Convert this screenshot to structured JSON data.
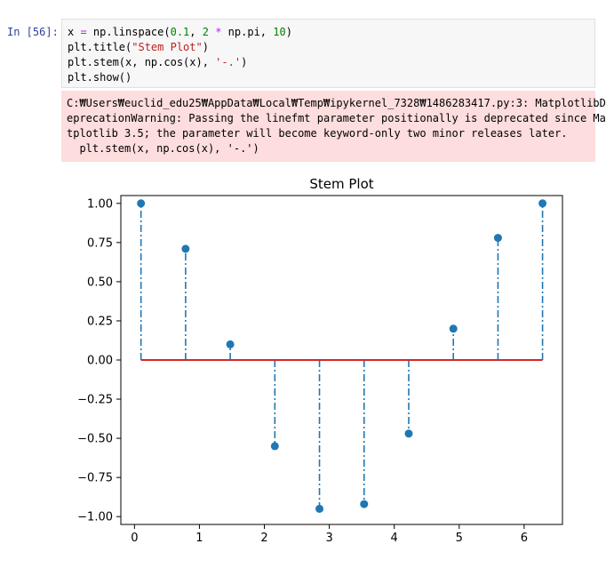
{
  "cell": {
    "prompt": "In [56]:",
    "code_lines": [
      [
        {
          "t": "x ",
          "c": ""
        },
        {
          "t": "=",
          "c": "op"
        },
        {
          "t": " np.linspace(",
          "c": ""
        },
        {
          "t": "0.1",
          "c": "num"
        },
        {
          "t": ", ",
          "c": ""
        },
        {
          "t": "2",
          "c": "num"
        },
        {
          "t": " ",
          "c": ""
        },
        {
          "t": "*",
          "c": "op"
        },
        {
          "t": " np.pi, ",
          "c": ""
        },
        {
          "t": "10",
          "c": "num"
        },
        {
          "t": ")",
          "c": ""
        }
      ],
      [
        {
          "t": "plt.title(",
          "c": ""
        },
        {
          "t": "\"Stem Plot\"",
          "c": "str"
        },
        {
          "t": ")",
          "c": ""
        }
      ],
      [
        {
          "t": "plt.stem(x, np.cos(x), ",
          "c": ""
        },
        {
          "t": "'-.'",
          "c": "str"
        },
        {
          "t": ")",
          "c": ""
        }
      ],
      [
        {
          "t": "plt.show()",
          "c": ""
        }
      ]
    ]
  },
  "output": {
    "warning_lines": [
      "C:₩Users₩euclid_edu25₩AppData₩Local₩Temp₩ipykernel_7328₩1486283417.py:3: MatplotlibD",
      "eprecationWarning: Passing the linefmt parameter positionally is deprecated since Ma",
      "tplotlib 3.5; the parameter will become keyword-only two minor releases later.",
      "  plt.stem(x, np.cos(x), '-.')"
    ]
  },
  "colors": {
    "stem": "#1f77b4",
    "baseline": "#d62728",
    "prompt": "#303f9f"
  },
  "chart_data": {
    "type": "stem",
    "title": "Stem Plot",
    "xlabel": "",
    "ylabel": "",
    "linefmt": "-.",
    "x": [
      0.1,
      0.7871,
      1.4743,
      2.1614,
      2.8486,
      3.5357,
      4.2228,
      4.91,
      5.5971,
      6.2832
    ],
    "y": [
      1.0,
      0.71,
      0.1,
      -0.55,
      -0.95,
      -0.92,
      -0.47,
      0.2,
      0.78,
      1.0
    ],
    "xlim": [
      -0.21,
      6.59
    ],
    "ylim": [
      -1.05,
      1.05
    ],
    "xticks": [
      0,
      1,
      2,
      3,
      4,
      5,
      6
    ],
    "xtick_labels": [
      "0",
      "1",
      "2",
      "3",
      "4",
      "5",
      "6"
    ],
    "yticks": [
      -1.0,
      -0.75,
      -0.5,
      -0.25,
      0.0,
      0.25,
      0.5,
      0.75,
      1.0
    ],
    "ytick_labels": [
      "−1.00",
      "−0.75",
      "−0.50",
      "−0.25",
      "0.00",
      "0.25",
      "0.50",
      "0.75",
      "1.00"
    ],
    "baseline": 0,
    "grid": false
  }
}
